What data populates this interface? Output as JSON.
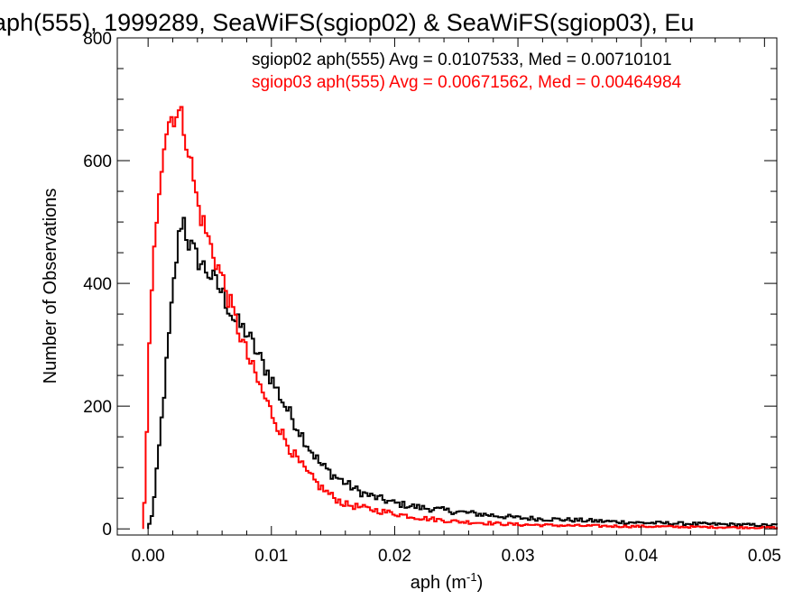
{
  "chart_data": {
    "type": "step-histogram",
    "title": "aph(555), 1999289, SeaWiFS(sgiop02) & SeaWiFS(sgiop03), Eu",
    "xlabel": "aph (m",
    "xlabel_sup": "-1",
    "xlabel_close": ")",
    "ylabel": "Number of Observations",
    "xlim": [
      -0.0025,
      0.051
    ],
    "ylim": [
      -10,
      800
    ],
    "xticks": [
      0.0,
      0.01,
      0.02,
      0.03,
      0.04,
      0.05
    ],
    "xtick_labels": [
      "0.00",
      "0.01",
      "0.02",
      "0.03",
      "0.04",
      "0.05"
    ],
    "yticks": [
      0,
      200,
      400,
      600,
      800
    ],
    "ytick_labels": [
      "0",
      "200",
      "400",
      "600",
      "800"
    ],
    "bin_width": 0.0002,
    "series": [
      {
        "name": "sgiop02",
        "legend_text": "sgiop02 aph(555) Avg = 0.0107533, Med = 0.00710101",
        "color": "#000000",
        "control_points": [
          [
            0.0,
            0
          ],
          [
            0.0004,
            30
          ],
          [
            0.0008,
            110
          ],
          [
            0.0012,
            200
          ],
          [
            0.0016,
            290
          ],
          [
            0.002,
            380
          ],
          [
            0.0024,
            460
          ],
          [
            0.0028,
            515
          ],
          [
            0.0032,
            470
          ],
          [
            0.004,
            440
          ],
          [
            0.005,
            415
          ],
          [
            0.006,
            385
          ],
          [
            0.007,
            340
          ],
          [
            0.008,
            320
          ],
          [
            0.009,
            280
          ],
          [
            0.01,
            245
          ],
          [
            0.011,
            205
          ],
          [
            0.012,
            170
          ],
          [
            0.013,
            135
          ],
          [
            0.014,
            105
          ],
          [
            0.015,
            88
          ],
          [
            0.016,
            75
          ],
          [
            0.017,
            62
          ],
          [
            0.018,
            54
          ],
          [
            0.02,
            42
          ],
          [
            0.022,
            35
          ],
          [
            0.025,
            28
          ],
          [
            0.03,
            18
          ],
          [
            0.035,
            14
          ],
          [
            0.04,
            10
          ],
          [
            0.045,
            8
          ],
          [
            0.05,
            6
          ],
          [
            0.051,
            6
          ]
        ]
      },
      {
        "name": "sgiop03",
        "legend_text": "sgiop03 aph(555) Avg = 0.00671562, Med = 0.00464984",
        "color": "#ff0000",
        "control_points": [
          [
            -0.0004,
            0
          ],
          [
            -0.0002,
            80
          ],
          [
            0.0,
            250
          ],
          [
            0.0004,
            420
          ],
          [
            0.0008,
            540
          ],
          [
            0.0012,
            620
          ],
          [
            0.0016,
            660
          ],
          [
            0.002,
            675
          ],
          [
            0.0024,
            680
          ],
          [
            0.0028,
            665
          ],
          [
            0.0032,
            630
          ],
          [
            0.004,
            530
          ],
          [
            0.005,
            465
          ],
          [
            0.006,
            410
          ],
          [
            0.007,
            345
          ],
          [
            0.008,
            285
          ],
          [
            0.009,
            235
          ],
          [
            0.01,
            190
          ],
          [
            0.011,
            150
          ],
          [
            0.012,
            115
          ],
          [
            0.013,
            88
          ],
          [
            0.014,
            68
          ],
          [
            0.015,
            52
          ],
          [
            0.016,
            40
          ],
          [
            0.018,
            32
          ],
          [
            0.02,
            25
          ],
          [
            0.022,
            18
          ],
          [
            0.025,
            12
          ],
          [
            0.03,
            7
          ],
          [
            0.035,
            5
          ],
          [
            0.04,
            4
          ],
          [
            0.045,
            3
          ],
          [
            0.05,
            2
          ],
          [
            0.051,
            2
          ]
        ]
      }
    ]
  }
}
